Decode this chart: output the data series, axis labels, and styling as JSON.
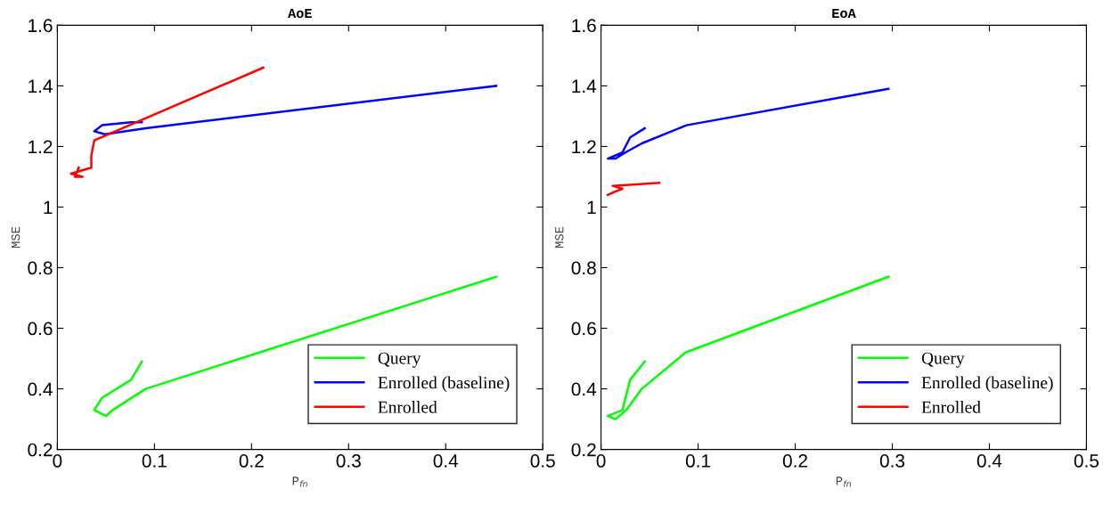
{
  "chart_data": [
    {
      "type": "line",
      "title": "AoE",
      "xlabel": "P$_{fn}$",
      "ylabel": "MSE",
      "xlim": [
        0,
        0.5
      ],
      "ylim": [
        0.2,
        1.6
      ],
      "xticks": [
        0,
        0.1,
        0.2,
        0.3,
        0.4,
        0.5
      ],
      "yticks": [
        0.2,
        0.4,
        0.6,
        0.8,
        1,
        1.2,
        1.4,
        1.6
      ],
      "grid": false,
      "legend": "bottom right",
      "marker": "none",
      "line_style": "solid",
      "series": [
        {
          "name": "Query",
          "color": "#00ff00",
          "x": [
            0.452,
            0.091,
            0.057,
            0.05,
            0.038,
            0.046,
            0.076,
            0.087
          ],
          "values": [
            0.77,
            0.4,
            0.33,
            0.31,
            0.33,
            0.37,
            0.43,
            0.49
          ]
        },
        {
          "name": "Enrolled (baseline)",
          "color": "#0000ff",
          "x": [
            0.452,
            0.091,
            0.049,
            0.038,
            0.046,
            0.076,
            0.087
          ],
          "values": [
            1.4,
            1.26,
            1.24,
            1.25,
            1.27,
            1.28,
            1.28
          ]
        },
        {
          "name": "Enrolled",
          "color": "#ff0000",
          "x": [
            0.212,
            0.038,
            0.035,
            0.035,
            0.014,
            0.026,
            0.018,
            0.022
          ],
          "values": [
            1.46,
            1.22,
            1.17,
            1.13,
            1.11,
            1.1,
            1.1,
            1.13
          ]
        }
      ]
    },
    {
      "type": "line",
      "title": "EoA",
      "xlabel": "P$_{fn}$",
      "ylabel": "MSE",
      "xlim": [
        0,
        0.5
      ],
      "ylim": [
        0.2,
        1.6
      ],
      "xticks": [
        0,
        0.1,
        0.2,
        0.3,
        0.4,
        0.5
      ],
      "yticks": [
        0.2,
        0.4,
        0.6,
        0.8,
        1,
        1.2,
        1.4,
        1.6
      ],
      "grid": false,
      "legend": "bottom right",
      "marker": "none",
      "line_style": "solid",
      "series": [
        {
          "name": "Query",
          "color": "#00ff00",
          "x": [
            0.296,
            0.087,
            0.042,
            0.026,
            0.015,
            0.007,
            0.022,
            0.03,
            0.045
          ],
          "values": [
            0.77,
            0.52,
            0.4,
            0.33,
            0.3,
            0.31,
            0.33,
            0.43,
            0.49
          ]
        },
        {
          "name": "Enrolled (baseline)",
          "color": "#0000ff",
          "x": [
            0.296,
            0.088,
            0.042,
            0.025,
            0.015,
            0.007,
            0.022,
            0.03,
            0.045
          ],
          "values": [
            1.39,
            1.27,
            1.21,
            1.18,
            1.16,
            1.16,
            1.18,
            1.23,
            1.26
          ]
        },
        {
          "name": "Enrolled",
          "color": "#ff0000",
          "x": [
            0.06,
            0.012,
            0.022,
            0.014,
            0.007
          ],
          "values": [
            1.08,
            1.07,
            1.06,
            1.05,
            1.04
          ]
        }
      ]
    }
  ]
}
